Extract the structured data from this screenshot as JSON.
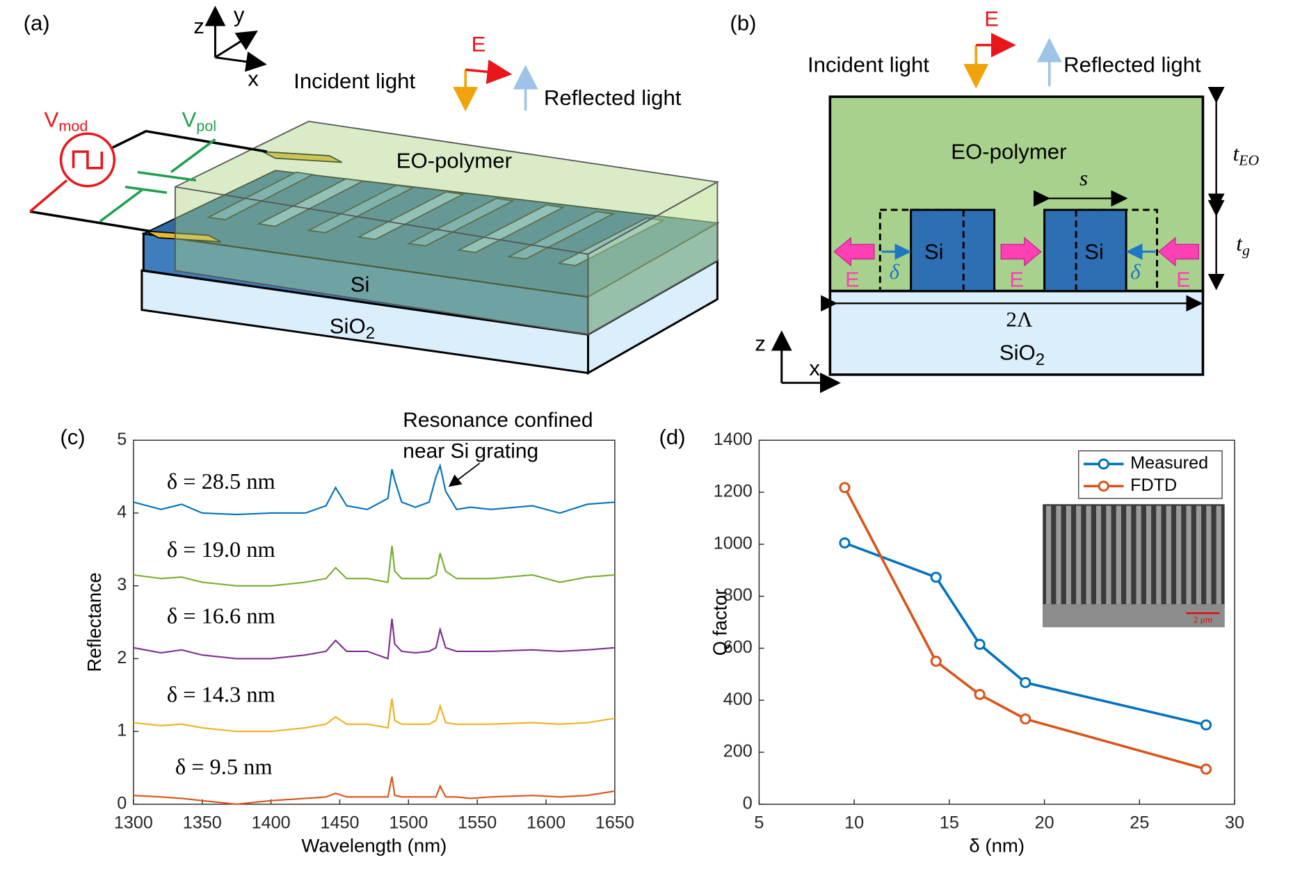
{
  "figure": {
    "panel_labels": [
      "(a)",
      "(b)",
      "(c)",
      "(d)"
    ]
  },
  "diagram_a": {
    "axes": [
      "z",
      "y",
      "x"
    ],
    "incident": "Incident light",
    "field": "E",
    "reflected": "Reflected light",
    "polymer": "EO-polymer",
    "si": "Si",
    "sio2": {
      "base": "SiO",
      "sub": "2"
    },
    "vmod": {
      "base": "V",
      "sub": "mod"
    },
    "vpol": {
      "base": "V",
      "sub": "pol"
    }
  },
  "diagram_b": {
    "field": "E",
    "incident": "Incident light",
    "reflected": "Reflected light",
    "polymer": "EO-polymer",
    "s": "s",
    "t_eo": {
      "base": "t",
      "sub": "EO"
    },
    "t_g": {
      "base": "t",
      "sub": "g"
    },
    "si_labels": [
      "Si",
      "Si"
    ],
    "delta_labels": [
      "δ",
      "δ"
    ],
    "field_labels": [
      "E",
      "E",
      "E"
    ],
    "period": "2Λ",
    "sio2": {
      "base": "SiO",
      "sub": "2"
    },
    "axes": [
      "z",
      "x"
    ]
  },
  "chart_data": [
    {
      "type": "line",
      "x": [
        1300,
        1320,
        1335,
        1350,
        1375,
        1400,
        1425,
        1440,
        1447,
        1455,
        1470,
        1485,
        1488,
        1490,
        1495,
        1505,
        1515,
        1520,
        1523,
        1527,
        1535,
        1545,
        1560,
        1590,
        1610,
        1630,
        1650
      ],
      "series": [
        {
          "name": "δ = 28.5 nm",
          "color": "#0072bd",
          "values": [
            4.15,
            4.05,
            4.12,
            4.0,
            3.98,
            4.0,
            4.0,
            4.1,
            4.35,
            4.1,
            4.05,
            4.2,
            4.6,
            4.45,
            4.15,
            4.08,
            4.15,
            4.5,
            4.65,
            4.3,
            4.05,
            4.08,
            4.05,
            4.1,
            4.0,
            4.12,
            4.15
          ]
        },
        {
          "name": "δ = 19.0 nm",
          "color": "#77ac30",
          "values": [
            3.15,
            3.1,
            3.12,
            3.05,
            3.0,
            3.0,
            3.05,
            3.1,
            3.25,
            3.1,
            3.1,
            3.05,
            3.55,
            3.2,
            3.1,
            3.1,
            3.1,
            3.15,
            3.45,
            3.2,
            3.1,
            3.1,
            3.1,
            3.15,
            3.05,
            3.12,
            3.15
          ]
        },
        {
          "name": "δ = 16.6 nm",
          "color": "#7e2f8e",
          "values": [
            2.15,
            2.08,
            2.12,
            2.05,
            2.0,
            2.0,
            2.05,
            2.1,
            2.25,
            2.1,
            2.1,
            2.0,
            2.55,
            2.2,
            2.1,
            2.08,
            2.1,
            2.15,
            2.4,
            2.15,
            2.1,
            2.1,
            2.1,
            2.12,
            2.1,
            2.12,
            2.15
          ]
        },
        {
          "name": "δ = 14.3 nm",
          "color": "#edb120",
          "values": [
            1.12,
            1.08,
            1.1,
            1.05,
            1.0,
            1.0,
            1.05,
            1.1,
            1.2,
            1.1,
            1.1,
            1.05,
            1.45,
            1.15,
            1.1,
            1.1,
            1.1,
            1.15,
            1.35,
            1.12,
            1.1,
            1.1,
            1.1,
            1.12,
            1.1,
            1.12,
            1.18
          ]
        },
        {
          "name": "δ = 9.5 nm",
          "color": "#d95319",
          "values": [
            0.12,
            0.1,
            0.08,
            0.05,
            0.0,
            0.05,
            0.08,
            0.1,
            0.15,
            0.1,
            0.1,
            0.1,
            0.38,
            0.12,
            0.1,
            0.1,
            0.1,
            0.1,
            0.25,
            0.1,
            0.1,
            0.08,
            0.1,
            0.12,
            0.1,
            0.12,
            0.18
          ]
        }
      ],
      "xlim": [
        1300,
        1650
      ],
      "xticks": [
        1300,
        1350,
        1400,
        1450,
        1500,
        1550,
        1600,
        1650
      ],
      "ylim": [
        0,
        5
      ],
      "yticks": [
        0,
        1,
        2,
        3,
        4,
        5
      ],
      "xlabel": "Wavelength (nm)",
      "ylabel": "Reflectance",
      "annotation": [
        "Resonance confined",
        "near Si grating"
      ]
    },
    {
      "type": "line",
      "markers": true,
      "series": [
        {
          "name": "Measured",
          "color": "#0072bd",
          "x": [
            9.5,
            14.3,
            16.6,
            19.0,
            28.5
          ],
          "values": [
            1005,
            873,
            615,
            468,
            305
          ]
        },
        {
          "name": "FDTD",
          "color": "#d95319",
          "x": [
            9.5,
            14.3,
            16.6,
            19.0,
            28.5
          ],
          "values": [
            1218,
            550,
            422,
            328,
            135
          ]
        }
      ],
      "legend": "upper right",
      "xlim": [
        5,
        30
      ],
      "xticks": [
        5,
        10,
        15,
        20,
        25,
        30
      ],
      "ylim": [
        0,
        1400
      ],
      "yticks": [
        0,
        200,
        400,
        600,
        800,
        1000,
        1200,
        1400
      ],
      "xlabel": "δ (nm)",
      "ylabel": "Q factor",
      "inset_scale_bar": "2 μm"
    }
  ]
}
